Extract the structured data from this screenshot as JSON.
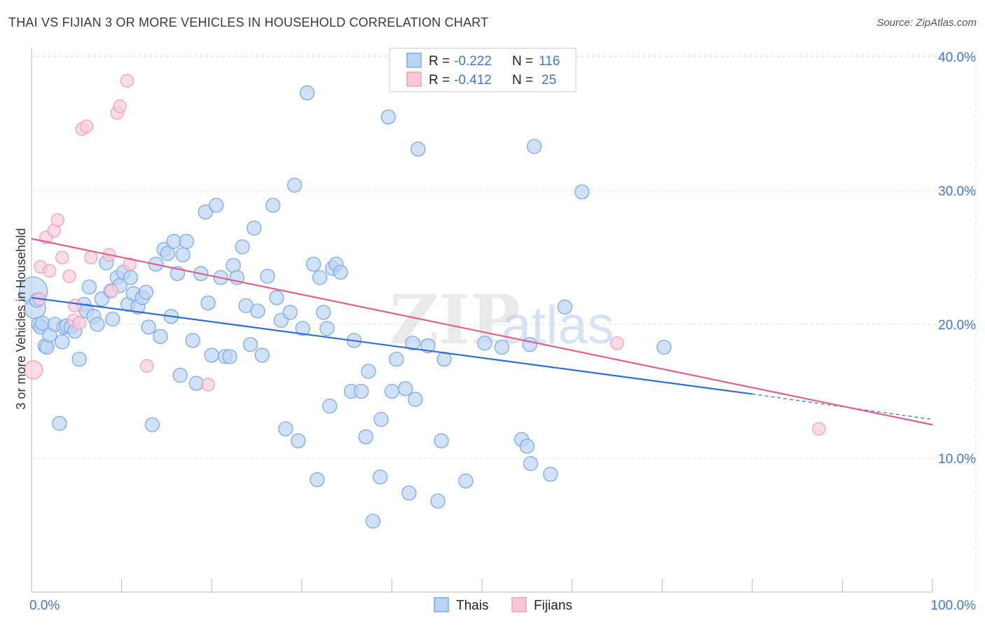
{
  "title": "THAI VS FIJIAN 3 OR MORE VEHICLES IN HOUSEHOLD CORRELATION CHART",
  "source": "Source: ZipAtlas.com",
  "watermark": {
    "zip": "ZIP",
    "atlas": "atlas"
  },
  "chart_data": {
    "type": "scatter",
    "title": "THAI VS FIJIAN 3 OR MORE VEHICLES IN HOUSEHOLD CORRELATION CHART",
    "xlabel": "",
    "ylabel": "3 or more Vehicles in Household",
    "xlim": [
      0,
      100
    ],
    "ylim": [
      0,
      42
    ],
    "x_tick_labels": [
      {
        "value": 0,
        "label": "0.0%"
      },
      {
        "value": 100,
        "label": "100.0%"
      }
    ],
    "y_ticks": [
      {
        "value": 10,
        "label": "10.0%"
      },
      {
        "value": 20,
        "label": "20.0%"
      },
      {
        "value": 30,
        "label": "30.0%"
      },
      {
        "value": 40,
        "label": "40.0%"
      }
    ],
    "legend": {
      "entries": [
        {
          "series": "Thais",
          "r_label": "R =",
          "r_value": "-0.222",
          "n_label": "N =",
          "n_value": "116"
        },
        {
          "series": "Fijians",
          "r_label": "R =",
          "r_value": "-0.412",
          "n_label": "N =",
          "n_value": "25"
        }
      ]
    },
    "bottom_legend": [
      "Thais",
      "Fijians"
    ],
    "series": [
      {
        "name": "Thais",
        "color": "#7aaae8",
        "line_color": "#2f6fd0",
        "trend": {
          "x0": 0,
          "y0": 22.0,
          "x1": 80,
          "y1": 14.8,
          "dash_to_x": 100,
          "dash_to_y": 12.9
        },
        "points": [
          [
            0.2,
            22.5
          ],
          [
            0.4,
            21.2
          ],
          [
            0.6,
            21.8
          ],
          [
            0.8,
            20.0
          ],
          [
            1.0,
            19.8
          ],
          [
            1.2,
            20.1
          ],
          [
            1.5,
            18.4
          ],
          [
            1.7,
            18.3
          ],
          [
            2.0,
            19.2
          ],
          [
            2.6,
            20.0
          ],
          [
            3.1,
            12.6
          ],
          [
            3.4,
            18.7
          ],
          [
            3.6,
            19.8
          ],
          [
            3.9,
            19.9
          ],
          [
            4.4,
            19.8
          ],
          [
            4.8,
            19.5
          ],
          [
            5.3,
            17.4
          ],
          [
            5.8,
            21.5
          ],
          [
            6.1,
            21.0
          ],
          [
            6.4,
            22.8
          ],
          [
            6.9,
            20.6
          ],
          [
            7.3,
            20.0
          ],
          [
            7.8,
            21.9
          ],
          [
            8.3,
            24.6
          ],
          [
            8.8,
            22.5
          ],
          [
            9.0,
            20.4
          ],
          [
            9.5,
            23.5
          ],
          [
            9.8,
            22.9
          ],
          [
            10.2,
            23.9
          ],
          [
            10.7,
            21.5
          ],
          [
            11.0,
            23.5
          ],
          [
            11.3,
            22.3
          ],
          [
            11.8,
            21.3
          ],
          [
            12.3,
            22.0
          ],
          [
            12.7,
            22.4
          ],
          [
            13.0,
            19.8
          ],
          [
            13.4,
            12.5
          ],
          [
            13.8,
            24.5
          ],
          [
            14.3,
            19.1
          ],
          [
            14.7,
            25.6
          ],
          [
            15.1,
            25.3
          ],
          [
            15.5,
            20.6
          ],
          [
            15.8,
            26.2
          ],
          [
            16.2,
            23.8
          ],
          [
            16.5,
            16.2
          ],
          [
            16.8,
            25.2
          ],
          [
            17.2,
            26.2
          ],
          [
            17.9,
            18.8
          ],
          [
            18.3,
            15.6
          ],
          [
            18.8,
            23.8
          ],
          [
            19.3,
            28.4
          ],
          [
            19.6,
            21.6
          ],
          [
            20.0,
            17.7
          ],
          [
            20.5,
            28.9
          ],
          [
            21.0,
            23.5
          ],
          [
            21.5,
            17.6
          ],
          [
            22.0,
            17.6
          ],
          [
            22.4,
            24.4
          ],
          [
            22.8,
            23.5
          ],
          [
            23.4,
            25.8
          ],
          [
            23.8,
            21.4
          ],
          [
            24.3,
            18.5
          ],
          [
            24.7,
            27.2
          ],
          [
            25.1,
            21.0
          ],
          [
            25.6,
            17.7
          ],
          [
            26.2,
            23.6
          ],
          [
            26.8,
            28.9
          ],
          [
            27.2,
            22.0
          ],
          [
            27.7,
            20.3
          ],
          [
            28.2,
            12.2
          ],
          [
            28.7,
            20.9
          ],
          [
            29.2,
            30.4
          ],
          [
            29.6,
            11.3
          ],
          [
            30.1,
            19.7
          ],
          [
            30.6,
            37.3
          ],
          [
            31.3,
            24.5
          ],
          [
            31.7,
            8.4
          ],
          [
            32.0,
            23.5
          ],
          [
            32.4,
            20.9
          ],
          [
            32.8,
            19.7
          ],
          [
            33.1,
            13.9
          ],
          [
            33.4,
            24.2
          ],
          [
            33.8,
            24.5
          ],
          [
            34.3,
            23.9
          ],
          [
            35.5,
            15.0
          ],
          [
            35.8,
            18.8
          ],
          [
            36.6,
            15.0
          ],
          [
            37.1,
            11.6
          ],
          [
            37.4,
            16.5
          ],
          [
            37.9,
            5.3
          ],
          [
            38.7,
            8.6
          ],
          [
            38.8,
            12.9
          ],
          [
            39.6,
            35.5
          ],
          [
            40.0,
            15.0
          ],
          [
            40.5,
            17.4
          ],
          [
            41.5,
            15.2
          ],
          [
            41.9,
            7.4
          ],
          [
            42.3,
            18.6
          ],
          [
            42.6,
            14.4
          ],
          [
            42.9,
            33.1
          ],
          [
            44.0,
            18.4
          ],
          [
            45.1,
            6.8
          ],
          [
            45.5,
            11.3
          ],
          [
            45.8,
            17.4
          ],
          [
            48.2,
            8.3
          ],
          [
            50.3,
            18.6
          ],
          [
            52.2,
            18.3
          ],
          [
            54.4,
            11.4
          ],
          [
            55.0,
            10.9
          ],
          [
            55.3,
            18.5
          ],
          [
            55.4,
            9.6
          ],
          [
            55.8,
            33.3
          ],
          [
            57.6,
            8.8
          ],
          [
            59.2,
            21.3
          ],
          [
            61.1,
            29.9
          ],
          [
            70.2,
            18.3
          ]
        ],
        "sizes_note": "first two points are large bubbles"
      },
      {
        "name": "Fijians",
        "color": "#f0a0bc",
        "line_color": "#e0608a",
        "trend": {
          "x0": 0,
          "y0": 26.4,
          "x1": 100,
          "y1": 12.5
        },
        "points": [
          [
            0.2,
            16.6
          ],
          [
            0.9,
            21.9
          ],
          [
            1.0,
            24.3
          ],
          [
            1.6,
            26.5
          ],
          [
            2.0,
            24.0
          ],
          [
            2.5,
            27.0
          ],
          [
            2.9,
            27.8
          ],
          [
            3.4,
            25.0
          ],
          [
            4.2,
            23.6
          ],
          [
            4.7,
            20.3
          ],
          [
            4.8,
            21.4
          ],
          [
            5.3,
            20.1
          ],
          [
            5.6,
            34.6
          ],
          [
            6.1,
            34.8
          ],
          [
            6.6,
            25.0
          ],
          [
            8.6,
            25.2
          ],
          [
            8.9,
            22.5
          ],
          [
            9.5,
            35.8
          ],
          [
            9.8,
            36.3
          ],
          [
            10.6,
            38.2
          ],
          [
            10.9,
            24.5
          ],
          [
            12.8,
            16.9
          ],
          [
            19.6,
            15.5
          ],
          [
            65.0,
            18.6
          ],
          [
            87.4,
            12.2
          ]
        ]
      }
    ]
  }
}
